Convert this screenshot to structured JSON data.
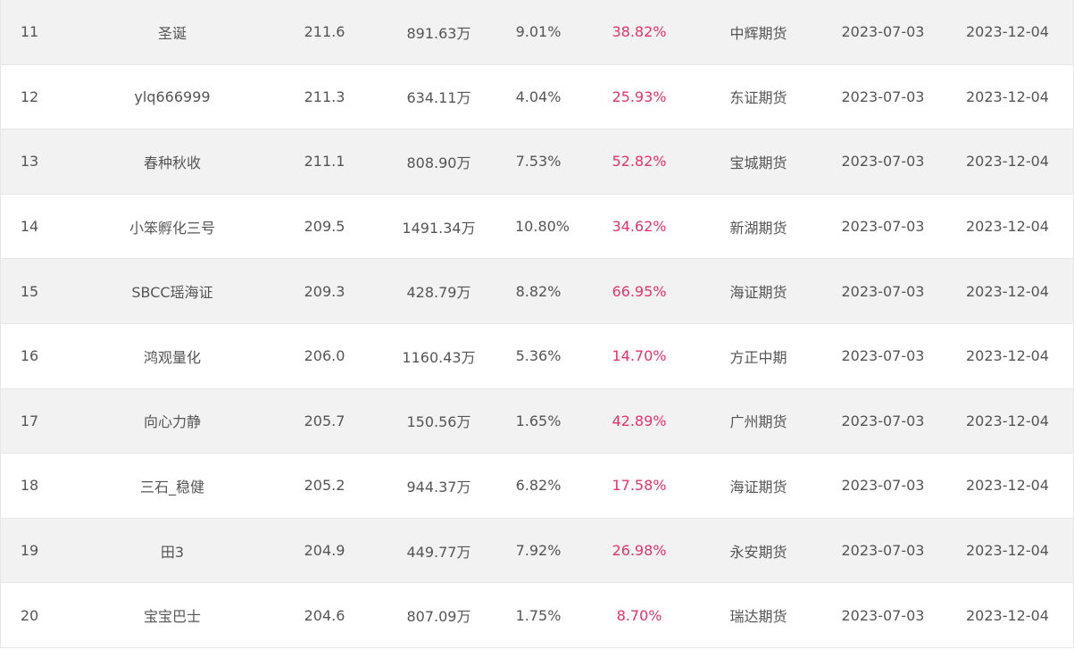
{
  "rows": [
    {
      "rank": "11",
      "name": "圣诞",
      "score": "211.6",
      "equity": "891.63万",
      "drawdown": "9.01%",
      "return": "38.82%",
      "broker": "中辉期货",
      "start": "2023-07-03",
      "end": "2023-12-04"
    },
    {
      "rank": "12",
      "name": "ylq666999",
      "score": "211.3",
      "equity": "634.11万",
      "drawdown": "4.04%",
      "return": "25.93%",
      "broker": "东证期货",
      "start": "2023-07-03",
      "end": "2023-12-04"
    },
    {
      "rank": "13",
      "name": "春种秋收",
      "score": "211.1",
      "equity": "808.90万",
      "drawdown": "7.53%",
      "return": "52.82%",
      "broker": "宝城期货",
      "start": "2023-07-03",
      "end": "2023-12-04"
    },
    {
      "rank": "14",
      "name": "小笨孵化三号",
      "score": "209.5",
      "equity": "1491.34万",
      "drawdown": "10.80%",
      "return": "34.62%",
      "broker": "新湖期货",
      "start": "2023-07-03",
      "end": "2023-12-04"
    },
    {
      "rank": "15",
      "name": "SBCC瑶海证",
      "score": "209.3",
      "equity": "428.79万",
      "drawdown": "8.82%",
      "return": "66.95%",
      "broker": "海证期货",
      "start": "2023-07-03",
      "end": "2023-12-04"
    },
    {
      "rank": "16",
      "name": "鸿观量化",
      "score": "206.0",
      "equity": "1160.43万",
      "drawdown": "5.36%",
      "return": "14.70%",
      "broker": "方正中期",
      "start": "2023-07-03",
      "end": "2023-12-04"
    },
    {
      "rank": "17",
      "name": "向心力静",
      "score": "205.7",
      "equity": "150.56万",
      "drawdown": "1.65%",
      "return": "42.89%",
      "broker": "广州期货",
      "start": "2023-07-03",
      "end": "2023-12-04"
    },
    {
      "rank": "18",
      "name": "三石_稳健",
      "score": "205.2",
      "equity": "944.37万",
      "drawdown": "6.82%",
      "return": "17.58%",
      "broker": "海证期货",
      "start": "2023-07-03",
      "end": "2023-12-04"
    },
    {
      "rank": "19",
      "name": "田3",
      "score": "204.9",
      "equity": "449.77万",
      "drawdown": "7.92%",
      "return": "26.98%",
      "broker": "永安期货",
      "start": "2023-07-03",
      "end": "2023-12-04"
    },
    {
      "rank": "20",
      "name": "宝宝巴士",
      "score": "204.6",
      "equity": "807.09万",
      "drawdown": "1.75%",
      "return": "8.70%",
      "broker": "瑞达期货",
      "start": "2023-07-03",
      "end": "2023-12-04"
    }
  ],
  "colors": {
    "return_text": "#e8336d",
    "row_alt_bg": "#f2f2f2",
    "text": "#555555"
  }
}
